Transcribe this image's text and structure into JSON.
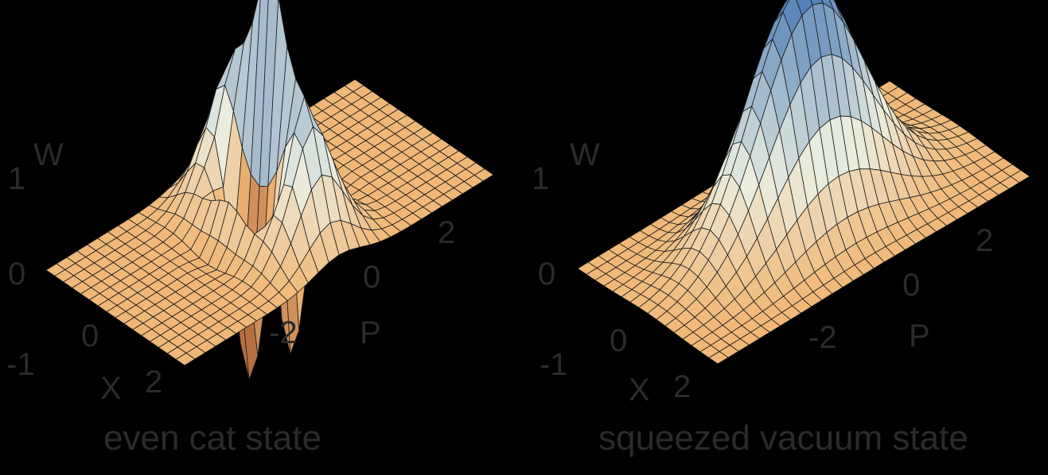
{
  "panels": [
    {
      "caption": "even cat state",
      "z_axis_label": "W",
      "x_axis_label": "X",
      "p_axis_label": "P",
      "z_ticks": [
        "1",
        "0",
        "-1"
      ],
      "x_ticks": [
        "0",
        "2"
      ],
      "p_ticks": [
        "-2",
        "0",
        "2"
      ],
      "surface": "wigner-even-cat"
    },
    {
      "caption": "squeezed vacuum state",
      "z_axis_label": "W",
      "x_axis_label": "X",
      "p_axis_label": "P",
      "z_ticks": [
        "1",
        "0",
        "-1"
      ],
      "x_ticks": [
        "0",
        "2"
      ],
      "p_ticks": [
        "-2",
        "0",
        "2"
      ],
      "surface": "wigner-squeezed-vacuum"
    }
  ],
  "colors": {
    "background": "#000000",
    "plane": "#f0b878",
    "peak": "#3a6fb0",
    "valley": "#a0522d",
    "mesh": "#1a1a1a"
  }
}
